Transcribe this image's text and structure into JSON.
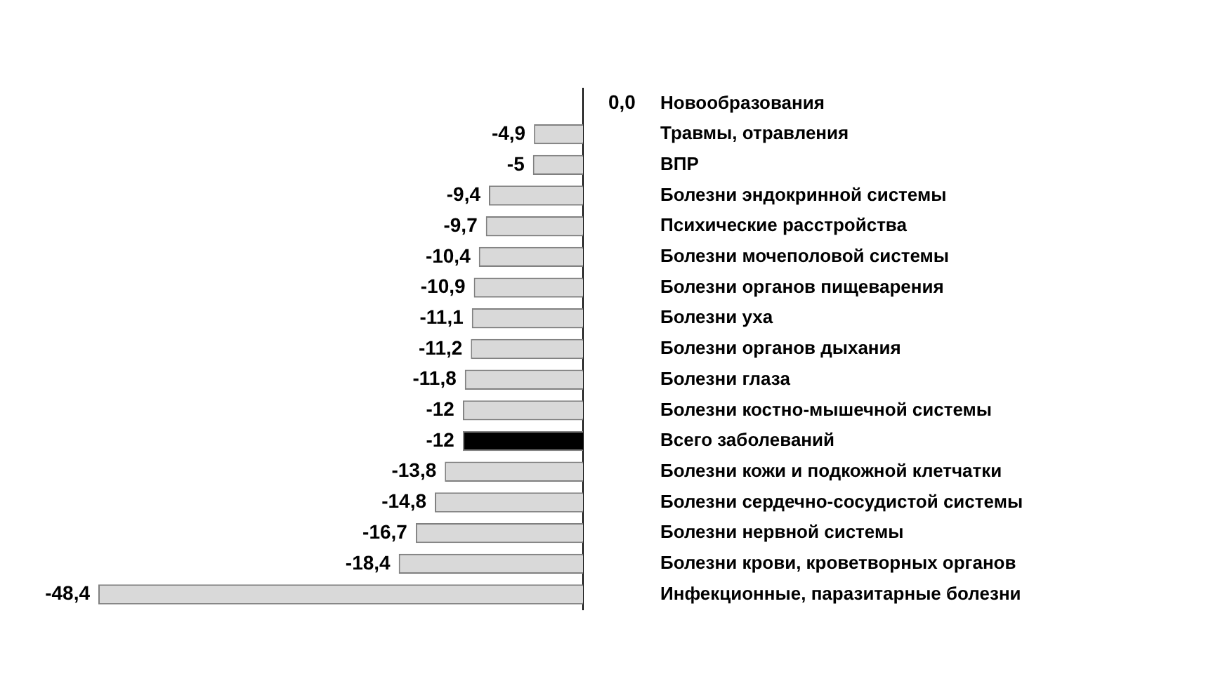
{
  "chart_data": {
    "type": "bar",
    "orientation": "horizontal",
    "categories": [
      "Новообразования",
      "Травмы, отравления",
      "ВПР",
      "Болезни эндокринной системы",
      "Психические расстройства",
      "Болезни мочеполовой системы",
      "Болезни органов пищеварения",
      "Болезни уха",
      "Болезни органов дыхания",
      "Болезни глаза",
      "Болезни костно-мышечной системы",
      "Всего заболеваний",
      "Болезни кожи и подкожной клетчатки",
      "Болезни сердечно-сосудистой системы",
      "Болезни нервной системы",
      "Болезни крови, кроветворных органов",
      "Инфекционные, паразитарные болезни"
    ],
    "values": [
      0.0,
      -4.9,
      -5,
      -9.4,
      -9.7,
      -10.4,
      -10.9,
      -11.1,
      -11.2,
      -11.8,
      -12,
      -12,
      -13.8,
      -14.8,
      -16.7,
      -18.4,
      -48.4
    ],
    "value_labels": [
      "0,0",
      "-4,9",
      "-5",
      "-9,4",
      "-9,7",
      "-10,4",
      "-10,9",
      "-11,1",
      "-11,2",
      "-11,8",
      "-12",
      "-12",
      "-13,8",
      "-14,8",
      "-16,7",
      "-18,4",
      "-48,4"
    ],
    "colors": [
      "#d9d9d9",
      "#d9d9d9",
      "#d9d9d9",
      "#d9d9d9",
      "#d9d9d9",
      "#d9d9d9",
      "#d9d9d9",
      "#d9d9d9",
      "#d9d9d9",
      "#d9d9d9",
      "#d9d9d9",
      "#000000",
      "#d9d9d9",
      "#d9d9d9",
      "#d9d9d9",
      "#d9d9d9",
      "#d9d9d9"
    ]
  }
}
